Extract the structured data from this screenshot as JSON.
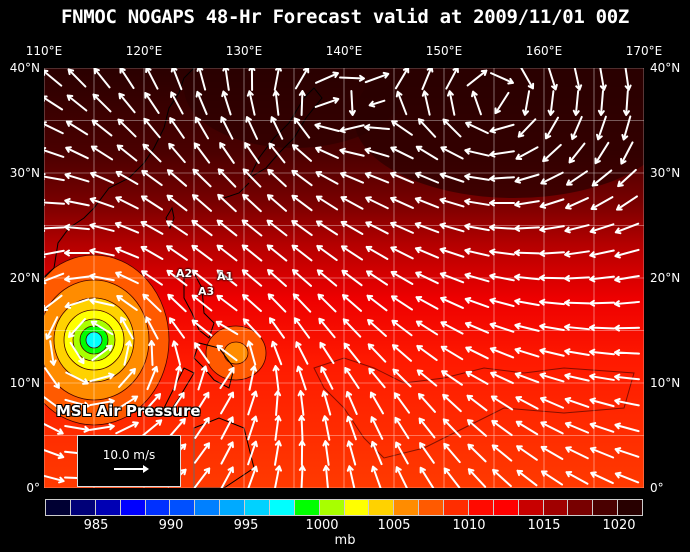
{
  "title": "FNMOC NOGAPS 48-Hr Forecast valid at 2009/11/01 00Z",
  "lon_labels": [
    "110°E",
    "120°E",
    "130°E",
    "140°E",
    "150°E",
    "160°E",
    "170°E"
  ],
  "lat_labels": [
    "40°N",
    "30°N",
    "20°N",
    "10°N",
    "0°"
  ],
  "annotations": {
    "a1": "A1",
    "a2": "A2",
    "a3": "A3"
  },
  "field_label": "MSL Air Pressure",
  "wind_legend": "10.0 m/s",
  "colorbar": {
    "labels": [
      "985",
      "990",
      "995",
      "1000",
      "1005",
      "1010",
      "1015",
      "1020"
    ],
    "unit": "mb",
    "colors": [
      "#000033",
      "#000078",
      "#0000b4",
      "#0000ff",
      "#0030ff",
      "#0050ff",
      "#0080ff",
      "#00aaff",
      "#00d2ff",
      "#00ffff",
      "#00ff00",
      "#a8ff00",
      "#ffff00",
      "#ffd200",
      "#ff8c00",
      "#ff5a00",
      "#ff2d00",
      "#ff0a00",
      "#ff0000",
      "#c80000",
      "#a00000",
      "#780000",
      "#4a0000",
      "#280000"
    ]
  }
}
